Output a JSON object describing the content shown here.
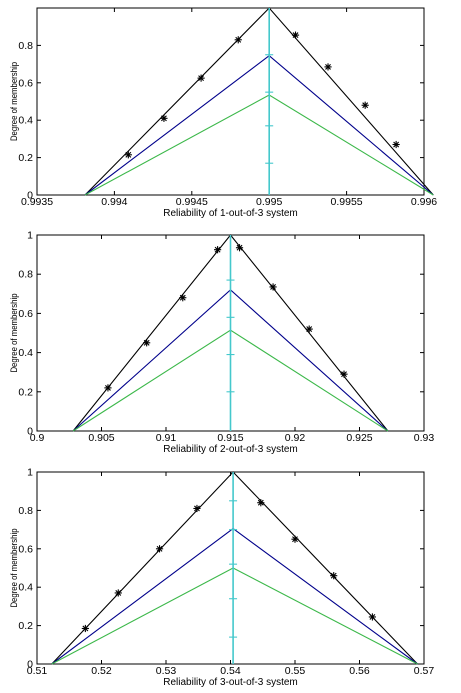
{
  "chart_data": [
    {
      "type": "line",
      "title": "",
      "xlabel": "Reliability of 1-out-of-3 system",
      "ylabel": "Degree of membership",
      "xlim": [
        0.9935,
        0.996
      ],
      "ylim": [
        0,
        1
      ],
      "xticks": [
        0.9935,
        0.994,
        0.9945,
        0.995,
        0.9955,
        0.996
      ],
      "xtick_labels": [
        "0.9935",
        "0.994",
        "0.9945",
        "0.995",
        "0.9955",
        "0.996"
      ],
      "yticks": [
        0,
        0.2,
        0.4,
        0.6,
        0.8
      ],
      "ytick_labels": [
        "0",
        "0.2",
        "0.4",
        "0.6",
        "0.8"
      ],
      "grid": false,
      "series": [
        {
          "color": "#000000",
          "x": [
            0.99381,
            0.995,
            0.99606
          ],
          "y": [
            0,
            1,
            0
          ]
        },
        {
          "color": "#00008b",
          "x": [
            0.99381,
            0.995,
            0.99606
          ],
          "y": [
            0,
            0.745,
            0
          ]
        },
        {
          "color": "#3cb84a",
          "x": [
            0.99381,
            0.995,
            0.99606
          ],
          "y": [
            0,
            0.535,
            0
          ]
        },
        {
          "color": "#44c8cc",
          "x": [
            0.995,
            0.995
          ],
          "y": [
            0,
            1
          ]
        }
      ],
      "markers": {
        "color": "#000000",
        "x": [
          0.99409,
          0.99432,
          0.99456,
          0.9948,
          0.99517,
          0.99538,
          0.99562,
          0.99582
        ],
        "y": [
          0.215,
          0.41,
          0.625,
          0.83,
          0.855,
          0.685,
          0.48,
          0.27
        ]
      },
      "vmarkers": {
        "color": "#44c8cc",
        "y": [
          0.17,
          0.37,
          0.55,
          0.75
        ]
      }
    },
    {
      "type": "line",
      "title": "",
      "xlabel": "Reliability of 2-out-of-3 system",
      "ylabel": "Degree of membership",
      "xlim": [
        0.9,
        0.93
      ],
      "ylim": [
        0,
        1
      ],
      "xticks": [
        0.9,
        0.905,
        0.91,
        0.915,
        0.92,
        0.925,
        0.93
      ],
      "xtick_labels": [
        "0.9",
        "0.905",
        "0.91",
        "0.915",
        "0.92",
        "0.925",
        "0.93"
      ],
      "yticks": [
        0,
        0.2,
        0.4,
        0.6,
        0.8,
        1
      ],
      "ytick_labels": [
        "0",
        "0.2",
        "0.4",
        "0.6",
        "0.8",
        "1"
      ],
      "grid": false,
      "series": [
        {
          "color": "#000000",
          "x": [
            0.9028,
            0.915,
            0.9272
          ],
          "y": [
            0,
            1,
            0
          ]
        },
        {
          "color": "#00008b",
          "x": [
            0.9028,
            0.915,
            0.9272
          ],
          "y": [
            0,
            0.72,
            0
          ]
        },
        {
          "color": "#3cb84a",
          "x": [
            0.9028,
            0.915,
            0.9272
          ],
          "y": [
            0,
            0.515,
            0
          ]
        },
        {
          "color": "#44c8cc",
          "x": [
            0.915,
            0.915
          ],
          "y": [
            0,
            1
          ]
        }
      ],
      "markers": {
        "color": "#000000",
        "x": [
          0.9055,
          0.9085,
          0.9113,
          0.914,
          0.9157,
          0.9183,
          0.9211,
          0.9238
        ],
        "y": [
          0.22,
          0.45,
          0.68,
          0.925,
          0.935,
          0.735,
          0.52,
          0.29
        ]
      },
      "vmarkers": {
        "color": "#44c8cc",
        "y": [
          0.2,
          0.39,
          0.58,
          0.77
        ]
      }
    },
    {
      "type": "line",
      "title": "",
      "xlabel": "Reliability of 3-out-of-3 system",
      "ylabel": "Degree of membership",
      "xlim": [
        0.51,
        0.57
      ],
      "ylim": [
        0,
        1
      ],
      "xticks": [
        0.51,
        0.52,
        0.53,
        0.54,
        0.55,
        0.56,
        0.57
      ],
      "xtick_labels": [
        "0.51",
        "0.52",
        "0.53",
        "0.54",
        "0.55",
        "0.56",
        "0.57"
      ],
      "yticks": [
        0,
        0.2,
        0.4,
        0.6,
        0.8,
        1
      ],
      "ytick_labels": [
        "0",
        "0.2",
        "0.4",
        "0.6",
        "0.8",
        "1"
      ],
      "grid": false,
      "series": [
        {
          "color": "#000000",
          "x": [
            0.5123,
            0.5404,
            0.569
          ],
          "y": [
            0,
            1,
            0
          ]
        },
        {
          "color": "#00008b",
          "x": [
            0.5123,
            0.5404,
            0.569
          ],
          "y": [
            0,
            0.705,
            0
          ]
        },
        {
          "color": "#3cb84a",
          "x": [
            0.5123,
            0.5404,
            0.569
          ],
          "y": [
            0,
            0.5,
            0
          ]
        },
        {
          "color": "#44c8cc",
          "x": [
            0.5404,
            0.5404
          ],
          "y": [
            0,
            1
          ]
        }
      ],
      "markers": {
        "color": "#000000",
        "x": [
          0.5175,
          0.5226,
          0.529,
          0.5348,
          0.5447,
          0.55,
          0.556,
          0.562
        ],
        "y": [
          0.185,
          0.37,
          0.6,
          0.81,
          0.84,
          0.65,
          0.46,
          0.245
        ]
      },
      "vmarkers": {
        "color": "#44c8cc",
        "y": [
          0.14,
          0.34,
          0.52,
          0.7,
          0.85
        ]
      }
    }
  ]
}
